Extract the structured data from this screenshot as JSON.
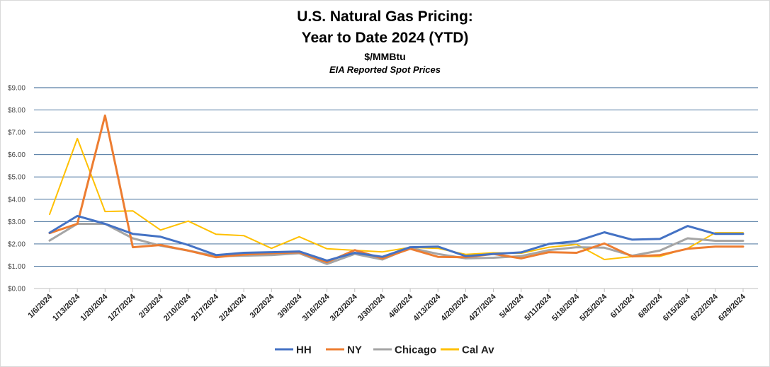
{
  "chart_data": {
    "type": "line",
    "title": "U.S. Natural Gas Pricing:",
    "title_line2": "Year to Date 2024 (YTD)",
    "subtitle": "$/MMBtu",
    "subtitle2": "EIA Reported Spot Prices",
    "xlabel": "",
    "ylabel": "",
    "ylim": [
      0,
      9
    ],
    "yticks": [
      "$0.00",
      "$1.00",
      "$2.00",
      "$3.00",
      "$4.00",
      "$5.00",
      "$6.00",
      "$7.00",
      "$8.00",
      "$9.00"
    ],
    "grid": true,
    "legend": "bottom",
    "categories": [
      "1/6/2024",
      "1/13/2024",
      "1/20/2024",
      "1/27/2024",
      "2/3/2024",
      "2/10/2024",
      "2/17/2024",
      "2/24/2024",
      "3/2/2024",
      "3/9/2024",
      "3/16/2024",
      "3/23/2024",
      "3/30/2024",
      "4/6/2024",
      "4/13/2024",
      "4/20/2024",
      "4/27/2024",
      "5/4/2024",
      "5/11/2024",
      "5/18/2024",
      "5/25/2024",
      "6/1/2024",
      "6/8/2024",
      "6/15/2024",
      "6/22/2024",
      "6/29/2024"
    ],
    "series": [
      {
        "name": "HH",
        "color": "#4472C4",
        "values": [
          2.5,
          3.25,
          2.9,
          2.45,
          2.32,
          1.95,
          1.5,
          1.6,
          1.63,
          1.66,
          1.25,
          1.6,
          1.42,
          1.85,
          1.88,
          1.45,
          1.55,
          1.62,
          2.0,
          2.12,
          2.52,
          2.19,
          2.22,
          2.8,
          2.45,
          2.45
        ]
      },
      {
        "name": "NY",
        "color": "#ED7D31",
        "values": [
          2.48,
          2.9,
          7.75,
          1.85,
          1.95,
          1.7,
          1.4,
          1.52,
          1.58,
          1.62,
          1.18,
          1.72,
          1.35,
          1.78,
          1.42,
          1.4,
          1.55,
          1.35,
          1.63,
          1.6,
          2.02,
          1.44,
          1.5,
          1.78,
          1.88,
          1.88
        ]
      },
      {
        "name": "Chicago",
        "color": "#A5A5A5",
        "values": [
          2.15,
          2.9,
          2.9,
          2.25,
          1.92,
          1.7,
          1.45,
          1.47,
          1.5,
          1.58,
          1.1,
          1.55,
          1.3,
          1.82,
          1.55,
          1.35,
          1.38,
          1.45,
          1.72,
          1.85,
          1.83,
          1.47,
          1.7,
          2.25,
          2.14,
          2.14
        ]
      },
      {
        "name": "Cal Av",
        "color": "#FFC000",
        "values": [
          3.32,
          6.72,
          3.45,
          3.48,
          2.62,
          3.02,
          2.43,
          2.37,
          1.8,
          2.32,
          1.78,
          1.71,
          1.64,
          1.84,
          1.8,
          1.53,
          1.6,
          1.58,
          1.85,
          1.97,
          1.3,
          1.43,
          1.44,
          1.8,
          2.5,
          2.5
        ]
      }
    ]
  }
}
